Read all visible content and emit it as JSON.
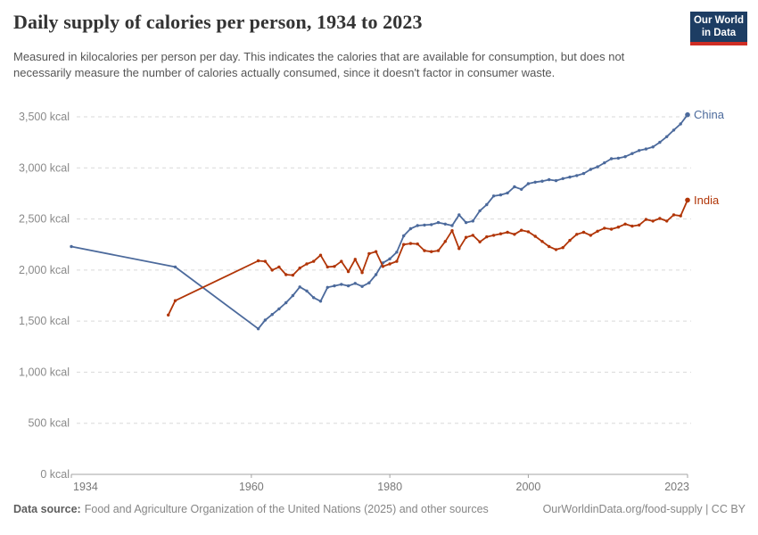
{
  "header": {
    "title": "Daily supply of calories per person, 1934 to 2023",
    "subtitle": "Measured in kilocalories per person per day. This indicates the calories that are available for consumption, but does not necessarily measure the number of calories actually consumed, since it doesn't factor in consumer waste.",
    "logo": {
      "line1": "Our World",
      "line2": "in Data",
      "bg": "#1d3d63",
      "accent": "#cf2d24"
    }
  },
  "footer": {
    "datasource_label": "Data source:",
    "datasource_text": "Food and Agriculture Organization of the United Nations (2025) and other sources",
    "link_text": "OurWorldinData.org/food-supply | CC BY"
  },
  "chart_data": {
    "type": "line",
    "title": "Daily supply of calories per person, 1934 to 2023",
    "xlabel": "",
    "ylabel": "",
    "xlim": [
      1934,
      2023
    ],
    "ylim": [
      0,
      3500
    ],
    "grid": "horizontal-dashed",
    "legend_position": "end-of-line-labels",
    "x_ticks": [
      {
        "value": 1934,
        "label": "1934"
      },
      {
        "value": 1960,
        "label": "1960"
      },
      {
        "value": 1980,
        "label": "1980"
      },
      {
        "value": 2000,
        "label": "2000"
      },
      {
        "value": 2023,
        "label": "2023"
      }
    ],
    "y_ticks": [
      {
        "value": 0,
        "label": "0 kcal"
      },
      {
        "value": 500,
        "label": "500 kcal"
      },
      {
        "value": 1000,
        "label": "1,000 kcal"
      },
      {
        "value": 1500,
        "label": "1,500 kcal"
      },
      {
        "value": 2000,
        "label": "2,000 kcal"
      },
      {
        "value": 2500,
        "label": "2,500 kcal"
      },
      {
        "value": 3000,
        "label": "3,000 kcal"
      },
      {
        "value": 3500,
        "label": "3,500 kcal"
      }
    ],
    "series": [
      {
        "name": "China",
        "color": "#4C6A9C",
        "points": [
          [
            1934,
            2230
          ],
          [
            1949,
            2030
          ],
          [
            1961,
            1425
          ],
          [
            1962,
            1510
          ],
          [
            1963,
            1565
          ],
          [
            1964,
            1620
          ],
          [
            1965,
            1680
          ],
          [
            1966,
            1750
          ],
          [
            1967,
            1835
          ],
          [
            1968,
            1795
          ],
          [
            1969,
            1730
          ],
          [
            1970,
            1695
          ],
          [
            1971,
            1830
          ],
          [
            1972,
            1845
          ],
          [
            1973,
            1860
          ],
          [
            1974,
            1845
          ],
          [
            1975,
            1870
          ],
          [
            1976,
            1840
          ],
          [
            1977,
            1875
          ],
          [
            1978,
            1955
          ],
          [
            1979,
            2070
          ],
          [
            1980,
            2110
          ],
          [
            1981,
            2175
          ],
          [
            1982,
            2335
          ],
          [
            1983,
            2405
          ],
          [
            1984,
            2435
          ],
          [
            1985,
            2440
          ],
          [
            1986,
            2445
          ],
          [
            1987,
            2465
          ],
          [
            1988,
            2450
          ],
          [
            1989,
            2435
          ],
          [
            1990,
            2540
          ],
          [
            1991,
            2465
          ],
          [
            1992,
            2480
          ],
          [
            1993,
            2580
          ],
          [
            1994,
            2640
          ],
          [
            1995,
            2725
          ],
          [
            1996,
            2735
          ],
          [
            1997,
            2755
          ],
          [
            1998,
            2815
          ],
          [
            1999,
            2790
          ],
          [
            2000,
            2845
          ],
          [
            2001,
            2860
          ],
          [
            2002,
            2870
          ],
          [
            2003,
            2885
          ],
          [
            2004,
            2875
          ],
          [
            2005,
            2895
          ],
          [
            2006,
            2910
          ],
          [
            2007,
            2925
          ],
          [
            2008,
            2945
          ],
          [
            2009,
            2985
          ],
          [
            2010,
            3010
          ],
          [
            2011,
            3050
          ],
          [
            2012,
            3090
          ],
          [
            2013,
            3095
          ],
          [
            2014,
            3110
          ],
          [
            2015,
            3140
          ],
          [
            2016,
            3170
          ],
          [
            2017,
            3185
          ],
          [
            2018,
            3205
          ],
          [
            2019,
            3250
          ],
          [
            2020,
            3305
          ],
          [
            2021,
            3370
          ],
          [
            2022,
            3430
          ],
          [
            2023,
            3520
          ]
        ]
      },
      {
        "name": "India",
        "color": "#B13507",
        "points": [
          [
            1948,
            1560
          ],
          [
            1949,
            1700
          ],
          [
            1961,
            2090
          ],
          [
            1962,
            2085
          ],
          [
            1963,
            2000
          ],
          [
            1964,
            2030
          ],
          [
            1965,
            1955
          ],
          [
            1966,
            1950
          ],
          [
            1967,
            2020
          ],
          [
            1968,
            2060
          ],
          [
            1969,
            2085
          ],
          [
            1970,
            2145
          ],
          [
            1971,
            2030
          ],
          [
            1972,
            2035
          ],
          [
            1973,
            2085
          ],
          [
            1974,
            1985
          ],
          [
            1975,
            2105
          ],
          [
            1976,
            1975
          ],
          [
            1977,
            2160
          ],
          [
            1978,
            2180
          ],
          [
            1979,
            2035
          ],
          [
            1980,
            2060
          ],
          [
            1981,
            2085
          ],
          [
            1982,
            2250
          ],
          [
            1983,
            2260
          ],
          [
            1984,
            2255
          ],
          [
            1985,
            2190
          ],
          [
            1986,
            2180
          ],
          [
            1987,
            2190
          ],
          [
            1988,
            2280
          ],
          [
            1989,
            2385
          ],
          [
            1990,
            2210
          ],
          [
            1991,
            2320
          ],
          [
            1992,
            2340
          ],
          [
            1993,
            2275
          ],
          [
            1994,
            2325
          ],
          [
            1995,
            2340
          ],
          [
            1996,
            2355
          ],
          [
            1997,
            2370
          ],
          [
            1998,
            2350
          ],
          [
            1999,
            2390
          ],
          [
            2000,
            2375
          ],
          [
            2001,
            2330
          ],
          [
            2002,
            2280
          ],
          [
            2003,
            2230
          ],
          [
            2004,
            2200
          ],
          [
            2005,
            2220
          ],
          [
            2006,
            2290
          ],
          [
            2007,
            2350
          ],
          [
            2008,
            2370
          ],
          [
            2009,
            2340
          ],
          [
            2010,
            2380
          ],
          [
            2011,
            2410
          ],
          [
            2012,
            2400
          ],
          [
            2013,
            2420
          ],
          [
            2014,
            2450
          ],
          [
            2015,
            2430
          ],
          [
            2016,
            2440
          ],
          [
            2017,
            2495
          ],
          [
            2018,
            2480
          ],
          [
            2019,
            2505
          ],
          [
            2020,
            2480
          ],
          [
            2021,
            2540
          ],
          [
            2022,
            2530
          ],
          [
            2023,
            2685
          ]
        ]
      }
    ],
    "colors": {
      "gridline": "#d9d9d9",
      "axis": "#a3a3a3",
      "tick_label": "#787878",
      "y_label": "#8a8a8a"
    }
  }
}
